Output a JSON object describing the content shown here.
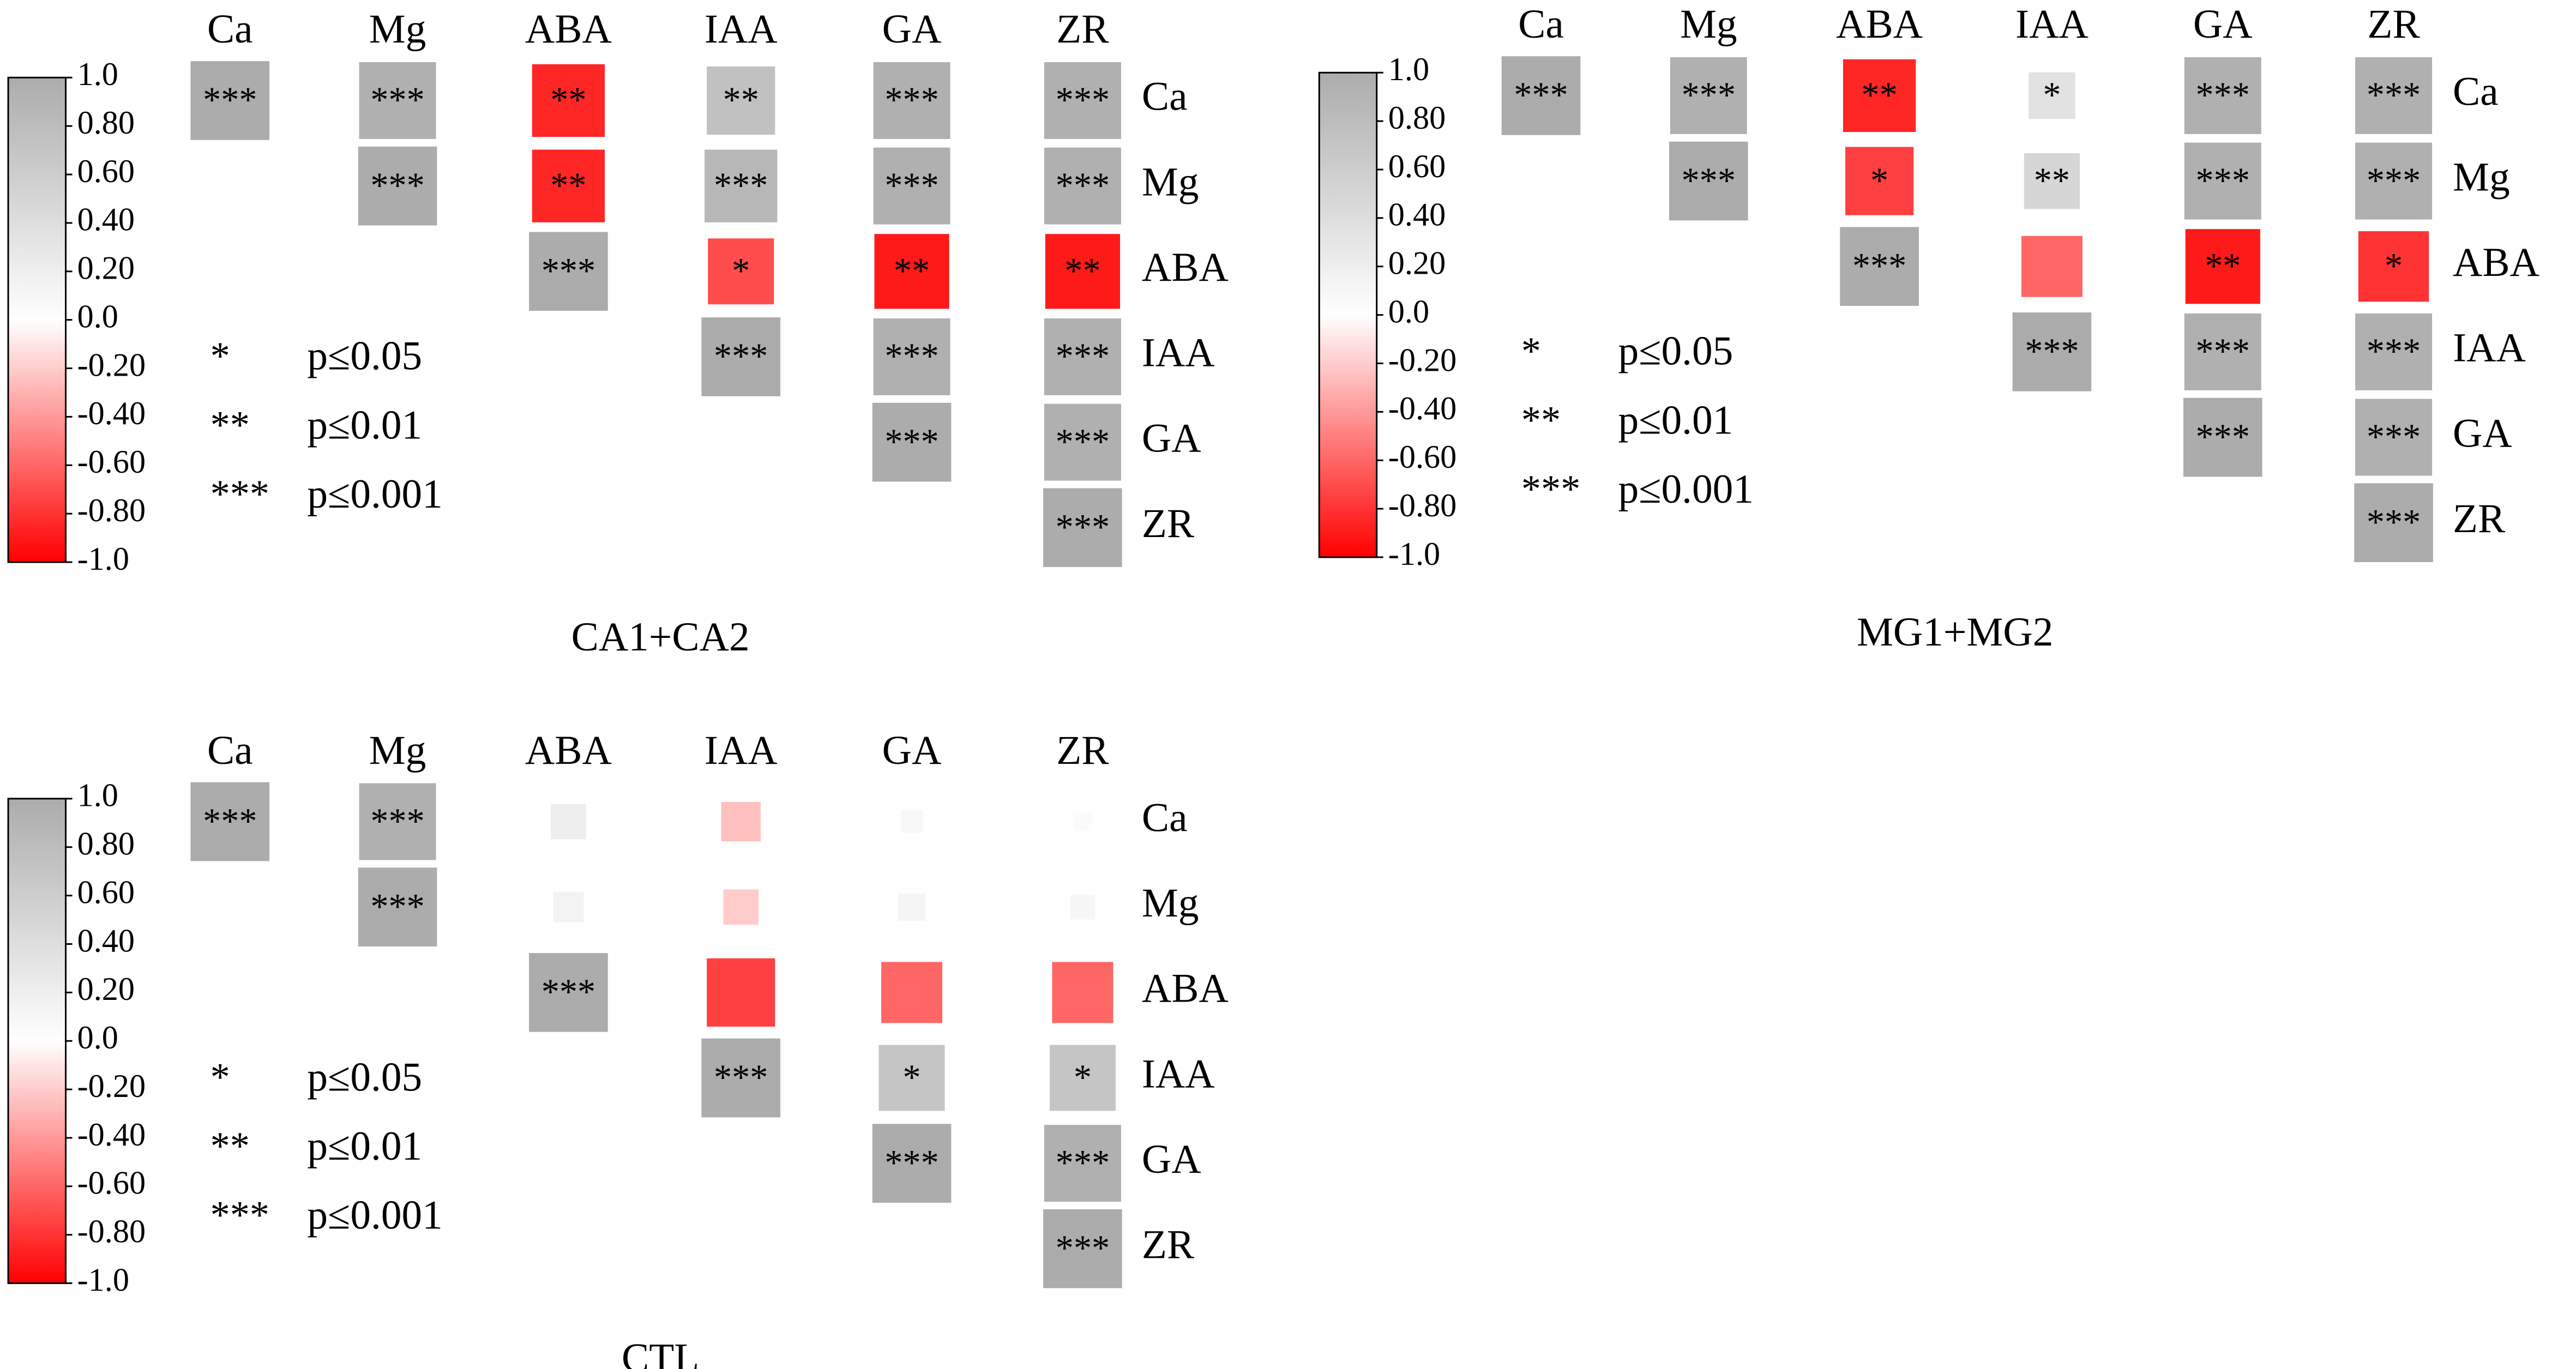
{
  "chart_data": [
    {
      "type": "heatmap",
      "title": "CA1+CA2",
      "variables": [
        "Ca",
        "Mg",
        "ABA",
        "IAA",
        "GA",
        "ZR"
      ],
      "matrix": [
        [
          1,
          0.95,
          -0.85,
          0.75,
          0.95,
          0.95
        ],
        [
          null,
          1,
          -0.85,
          0.85,
          0.95,
          0.95
        ],
        [
          null,
          null,
          1,
          -0.7,
          -0.9,
          -0.9
        ],
        [
          null,
          null,
          null,
          1,
          0.95,
          0.95
        ],
        [
          null,
          null,
          null,
          null,
          1,
          0.95
        ],
        [
          null,
          null,
          null,
          null,
          null,
          1
        ]
      ],
      "value_labels": [
        [
          "***",
          "***",
          "**",
          "**",
          "***",
          "***"
        ],
        [
          null,
          "***",
          "**",
          "***",
          "***",
          "***"
        ],
        [
          null,
          null,
          "***",
          "*",
          "**",
          "**"
        ],
        [
          null,
          null,
          null,
          "***",
          "***",
          "***"
        ],
        [
          null,
          null,
          null,
          null,
          "***",
          "***"
        ],
        [
          null,
          null,
          null,
          null,
          null,
          "***"
        ]
      ],
      "clim": [
        -1,
        1
      ],
      "cticks": [
        {
          "value": 1,
          "label": "1.0"
        },
        {
          "value": 0.8,
          "label": "0.80"
        },
        {
          "value": 0.6,
          "label": "0.60"
        },
        {
          "value": 0.4,
          "label": "0.40"
        },
        {
          "value": 0.2,
          "label": "0.20"
        },
        {
          "value": 0,
          "label": "0.0"
        },
        {
          "value": -0.2,
          "label": "-0.20"
        },
        {
          "value": -0.4,
          "label": "-0.40"
        },
        {
          "value": -0.6,
          "label": "-0.60"
        },
        {
          "value": -0.8,
          "label": "-0.80"
        },
        {
          "value": -1,
          "label": "-1.0"
        }
      ],
      "colors": {
        "low": "#ff0000",
        "mid": "#ffffff",
        "high": "#acacac"
      },
      "significance": [
        {
          "symbol": "*",
          "label": "p≤0.05"
        },
        {
          "symbol": "**",
          "label": "p≤0.01"
        },
        {
          "symbol": "***",
          "label": "p≤0.001"
        }
      ]
    },
    {
      "type": "heatmap",
      "title": "MG1+MG2",
      "variables": [
        "Ca",
        "Mg",
        "ABA",
        "IAA",
        "GA",
        "ZR"
      ],
      "matrix": [
        [
          1,
          0.95,
          -0.85,
          0.35,
          0.95,
          0.95
        ],
        [
          null,
          1,
          -0.75,
          0.5,
          0.95,
          0.95
        ],
        [
          null,
          null,
          1,
          -0.6,
          -0.9,
          -0.8
        ],
        [
          null,
          null,
          null,
          1,
          0.95,
          0.95
        ],
        [
          null,
          null,
          null,
          null,
          1,
          0.95
        ],
        [
          null,
          null,
          null,
          null,
          null,
          1
        ]
      ],
      "value_labels": [
        [
          "***",
          "***",
          "**",
          "*",
          "***",
          "***"
        ],
        [
          null,
          "***",
          "*",
          "**",
          "***",
          "***"
        ],
        [
          null,
          null,
          "***",
          null,
          "**",
          "*"
        ],
        [
          null,
          null,
          null,
          "***",
          "***",
          "***"
        ],
        [
          null,
          null,
          null,
          null,
          "***",
          "***"
        ],
        [
          null,
          null,
          null,
          null,
          null,
          "***"
        ]
      ],
      "clim": [
        -1,
        1
      ],
      "cticks": [
        {
          "value": 1,
          "label": "1.0"
        },
        {
          "value": 0.8,
          "label": "0.80"
        },
        {
          "value": 0.6,
          "label": "0.60"
        },
        {
          "value": 0.4,
          "label": "0.40"
        },
        {
          "value": 0.2,
          "label": "0.20"
        },
        {
          "value": 0,
          "label": "0.0"
        },
        {
          "value": -0.2,
          "label": "-0.20"
        },
        {
          "value": -0.4,
          "label": "-0.40"
        },
        {
          "value": -0.6,
          "label": "-0.60"
        },
        {
          "value": -0.8,
          "label": "-0.80"
        },
        {
          "value": -1,
          "label": "-1.0"
        }
      ],
      "colors": {
        "low": "#ff0000",
        "mid": "#ffffff",
        "high": "#acacac"
      },
      "significance": [
        {
          "symbol": "*",
          "label": "p≤0.05"
        },
        {
          "symbol": "**",
          "label": "p≤0.01"
        },
        {
          "symbol": "***",
          "label": "p≤0.001"
        }
      ]
    },
    {
      "type": "heatmap",
      "title": "CTL",
      "variables": [
        "Ca",
        "Mg",
        "ABA",
        "IAA",
        "GA",
        "ZR"
      ],
      "matrix": [
        [
          1,
          0.95,
          0.2,
          -0.25,
          0.08,
          0.05
        ],
        [
          null,
          1,
          0.15,
          -0.2,
          0.12,
          0.1
        ],
        [
          null,
          null,
          1,
          -0.75,
          -0.6,
          -0.6
        ],
        [
          null,
          null,
          null,
          1,
          0.7,
          0.7
        ],
        [
          null,
          null,
          null,
          null,
          1,
          0.95
        ],
        [
          null,
          null,
          null,
          null,
          null,
          1
        ]
      ],
      "value_labels": [
        [
          "***",
          "***",
          null,
          null,
          null,
          null
        ],
        [
          null,
          "***",
          null,
          null,
          null,
          null
        ],
        [
          null,
          null,
          "***",
          null,
          null,
          null
        ],
        [
          null,
          null,
          null,
          "***",
          "*",
          "*"
        ],
        [
          null,
          null,
          null,
          null,
          "***",
          "***"
        ],
        [
          null,
          null,
          null,
          null,
          null,
          "***"
        ]
      ],
      "clim": [
        -1,
        1
      ],
      "cticks": [
        {
          "value": 1,
          "label": "1.0"
        },
        {
          "value": 0.8,
          "label": "0.80"
        },
        {
          "value": 0.6,
          "label": "0.60"
        },
        {
          "value": 0.4,
          "label": "0.40"
        },
        {
          "value": 0.2,
          "label": "0.20"
        },
        {
          "value": 0,
          "label": "0.0"
        },
        {
          "value": -0.2,
          "label": "-0.20"
        },
        {
          "value": -0.4,
          "label": "-0.40"
        },
        {
          "value": -0.6,
          "label": "-0.60"
        },
        {
          "value": -0.8,
          "label": "-0.80"
        },
        {
          "value": -1,
          "label": "-1.0"
        }
      ],
      "colors": {
        "low": "#ff0000",
        "mid": "#ffffff",
        "high": "#acacac"
      },
      "significance": [
        {
          "symbol": "*",
          "label": "p≤0.05"
        },
        {
          "symbol": "**",
          "label": "p≤0.01"
        },
        {
          "symbol": "***",
          "label": "p≤0.001"
        }
      ]
    }
  ]
}
